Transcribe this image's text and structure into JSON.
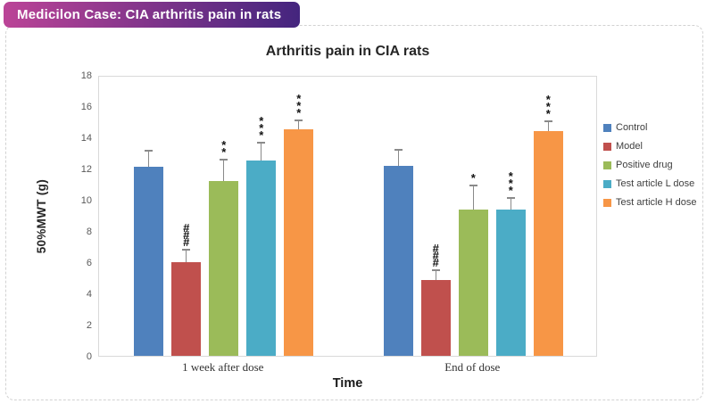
{
  "banner": {
    "title": "Medicilon Case: CIA arthritis pain in rats",
    "gradient_left": "#bb4497",
    "gradient_right": "#44257e"
  },
  "chart_data": {
    "type": "bar",
    "title": "Arthritis pain in CIA rats",
    "xlabel": "Time",
    "ylabel": "50%MWT (g)",
    "ylim": [
      0,
      18
    ],
    "yticks": [
      0,
      2,
      4,
      6,
      8,
      10,
      12,
      14,
      16,
      18
    ],
    "grid": false,
    "legend_position": "right",
    "categories": [
      "1 week after dose",
      "End of dose"
    ],
    "series": [
      {
        "name": "Control",
        "color": "#4f81bd",
        "values": [
          12.1,
          12.15
        ],
        "errors": [
          1.0,
          1.0
        ],
        "sig_markers": [
          "",
          ""
        ]
      },
      {
        "name": "Model",
        "color": "#c0504d",
        "values": [
          6.0,
          4.85
        ],
        "errors": [
          0.75,
          0.6
        ],
        "sig_markers": [
          "###",
          "###"
        ]
      },
      {
        "name": "Positive drug",
        "color": "#9bbb59",
        "values": [
          11.2,
          9.4
        ],
        "errors": [
          1.3,
          1.45
        ],
        "sig_markers": [
          "**",
          "*"
        ]
      },
      {
        "name": "Test article L dose",
        "color": "#4bacc6",
        "values": [
          12.5,
          9.35
        ],
        "errors": [
          1.1,
          0.7
        ],
        "sig_markers": [
          "***",
          "***"
        ]
      },
      {
        "name": "Test article H dose",
        "color": "#f79646",
        "values": [
          14.5,
          14.4
        ],
        "errors": [
          0.55,
          0.55
        ],
        "sig_markers": [
          "***",
          "***"
        ]
      }
    ],
    "error_bar_color": "#8a8a8a",
    "axis_color": "#d9d9d9"
  }
}
